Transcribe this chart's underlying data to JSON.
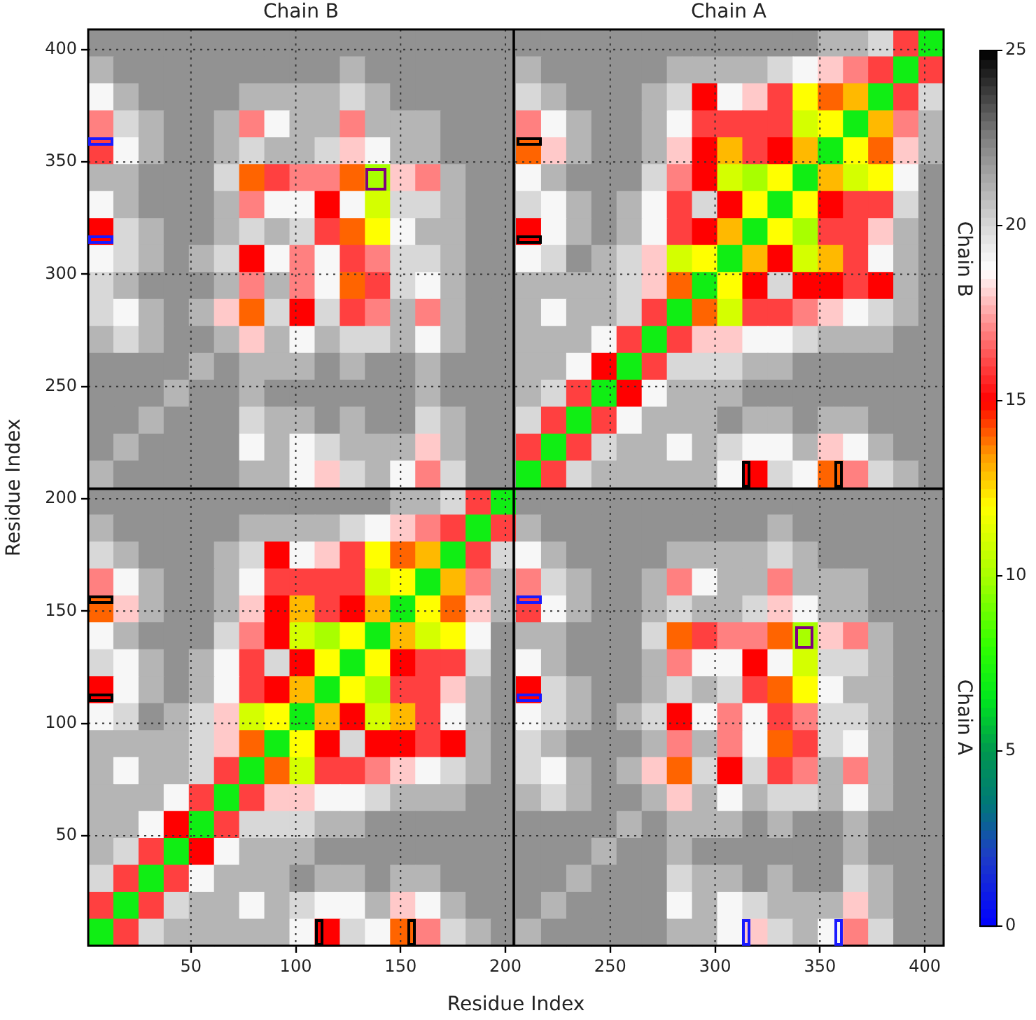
{
  "chart_data": {
    "type": "heatmap",
    "xlabel": "Residue Index",
    "ylabel": "Residue Index",
    "annotations": [
      "Chain B",
      "Chain A",
      "Chain B",
      "Chain A"
    ],
    "xlim": [
      1,
      409
    ],
    "ylim": [
      1,
      409
    ],
    "xticks": [
      50,
      100,
      150,
      200,
      250,
      300,
      350,
      400
    ],
    "yticks": [
      50,
      100,
      150,
      200,
      250,
      300,
      350,
      400
    ],
    "grid": true,
    "ref_lines": [
      {
        "axis": "x",
        "value": 204,
        "color": "#000000"
      },
      {
        "axis": "y",
        "value": 204.5,
        "color": "#000000"
      }
    ],
    "clim": [
      0,
      25
    ],
    "cticks": [
      0,
      5,
      10,
      15,
      20,
      25
    ],
    "cells": [
      [
        22,
        22,
        22,
        22,
        22,
        22,
        22,
        22,
        22,
        22,
        22,
        22,
        22,
        22,
        22,
        22,
        22,
        22,
        22,
        22,
        22,
        22,
        22,
        22,
        22,
        22,
        22,
        22,
        22,
        21,
        21,
        20,
        16,
        7
      ],
      [
        21,
        22,
        22,
        22,
        22,
        22,
        22,
        22,
        22,
        22,
        21,
        22,
        22,
        22,
        22,
        22,
        22,
        21,
        22,
        22,
        22,
        22,
        22,
        21,
        21,
        21,
        21,
        20,
        19,
        18,
        17,
        16,
        7,
        16
      ],
      [
        19,
        21,
        22,
        22,
        22,
        22,
        21,
        21,
        21,
        21,
        20,
        21,
        22,
        22,
        22,
        22,
        22,
        20,
        21,
        22,
        22,
        22,
        21,
        20,
        15,
        19,
        18,
        16,
        12,
        14,
        13,
        7,
        16,
        20
      ],
      [
        17,
        20,
        21,
        22,
        22,
        21,
        17,
        19,
        21,
        21,
        17,
        21,
        21,
        21,
        22,
        22,
        22,
        17,
        19,
        21,
        22,
        22,
        21,
        19,
        16,
        16,
        16,
        16,
        11,
        12,
        7,
        13,
        17,
        21
      ],
      [
        16,
        19,
        21,
        22,
        22,
        21,
        20,
        21,
        21,
        20,
        18,
        19,
        21,
        21,
        22,
        22,
        22,
        14,
        18,
        21,
        22,
        22,
        21,
        18,
        15,
        13,
        16,
        15,
        13,
        7,
        12,
        14,
        18,
        21
      ],
      [
        21,
        21,
        22,
        22,
        22,
        20,
        14,
        16,
        17,
        17,
        14,
        10,
        18,
        17,
        21,
        22,
        22,
        19,
        21,
        22,
        22,
        22,
        20,
        17,
        15,
        11,
        10,
        12,
        7,
        13,
        11,
        12,
        19,
        22
      ],
      [
        19,
        21,
        22,
        22,
        22,
        21,
        17,
        19,
        19,
        15,
        19,
        11,
        20,
        20,
        21,
        22,
        22,
        20,
        19,
        21,
        22,
        21,
        19,
        16,
        20,
        15,
        12,
        7,
        12,
        15,
        16,
        16,
        20,
        22
      ],
      [
        15,
        20,
        21,
        22,
        22,
        21,
        20,
        21,
        20,
        16,
        14,
        12,
        19,
        21,
        21,
        22,
        22,
        15,
        19,
        21,
        22,
        21,
        19,
        16,
        15,
        13,
        7,
        12,
        10,
        16,
        16,
        18,
        21,
        22
      ],
      [
        19,
        20,
        21,
        22,
        21,
        20,
        15,
        19,
        17,
        19,
        16,
        17,
        20,
        20,
        21,
        22,
        22,
        19,
        20,
        22,
        21,
        20,
        18,
        11,
        12,
        7,
        13,
        15,
        11,
        13,
        16,
        19,
        21,
        22
      ],
      [
        20,
        21,
        22,
        22,
        22,
        21,
        17,
        21,
        17,
        19,
        14,
        16,
        20,
        19,
        21,
        22,
        22,
        21,
        21,
        21,
        21,
        20,
        18,
        14,
        7,
        12,
        15,
        20,
        15,
        15,
        16,
        15,
        21,
        22
      ],
      [
        20,
        19,
        21,
        22,
        21,
        18,
        14,
        20,
        15,
        20,
        16,
        17,
        21,
        17,
        21,
        22,
        22,
        21,
        19,
        21,
        21,
        20,
        16,
        7,
        14,
        11,
        16,
        16,
        17,
        18,
        19,
        20,
        21,
        22
      ],
      [
        21,
        20,
        21,
        22,
        22,
        21,
        18,
        21,
        19,
        21,
        20,
        20,
        21,
        19,
        21,
        22,
        22,
        21,
        21,
        21,
        19,
        16,
        7,
        16,
        18,
        18,
        19,
        19,
        20,
        21,
        21,
        21,
        22,
        22
      ],
      [
        22,
        22,
        22,
        22,
        21,
        22,
        21,
        21,
        21,
        22,
        21,
        22,
        22,
        21,
        22,
        22,
        22,
        21,
        21,
        19,
        15,
        7,
        16,
        20,
        20,
        20,
        21,
        21,
        22,
        22,
        22,
        22,
        22,
        22
      ],
      [
        22,
        22,
        22,
        21,
        22,
        22,
        21,
        22,
        22,
        22,
        22,
        22,
        22,
        21,
        22,
        22,
        22,
        21,
        20,
        16,
        7,
        15,
        19,
        21,
        21,
        21,
        22,
        22,
        22,
        22,
        22,
        22,
        22,
        22
      ],
      [
        22,
        22,
        21,
        22,
        22,
        22,
        20,
        21,
        21,
        22,
        21,
        22,
        22,
        20,
        21,
        22,
        22,
        20,
        16,
        7,
        16,
        19,
        21,
        21,
        21,
        22,
        21,
        21,
        22,
        21,
        21,
        22,
        22,
        22
      ],
      [
        22,
        21,
        22,
        22,
        22,
        22,
        19,
        21,
        19,
        20,
        21,
        21,
        21,
        18,
        21,
        22,
        22,
        16,
        7,
        16,
        20,
        21,
        21,
        19,
        21,
        20,
        19,
        19,
        21,
        18,
        19,
        21,
        22,
        22
      ],
      [
        21,
        22,
        22,
        22,
        22,
        22,
        21,
        21,
        19,
        18,
        20,
        21,
        19,
        17,
        20,
        22,
        22,
        7,
        16,
        20,
        21,
        21,
        21,
        21,
        21,
        19,
        15,
        20,
        19,
        14,
        17,
        20,
        21,
        22
      ],
      [
        22,
        22,
        22,
        22,
        22,
        22,
        22,
        22,
        22,
        22,
        22,
        22,
        21,
        21,
        20,
        16,
        7,
        22,
        22,
        22,
        22,
        22,
        22,
        22,
        22,
        22,
        22,
        22,
        22,
        22,
        22,
        22,
        22,
        22
      ],
      [
        21,
        22,
        22,
        22,
        22,
        22,
        21,
        21,
        21,
        21,
        20,
        19,
        18,
        17,
        16,
        7,
        16,
        21,
        22,
        22,
        22,
        22,
        22,
        22,
        22,
        22,
        22,
        21,
        22,
        22,
        22,
        22,
        22,
        22
      ],
      [
        20,
        21,
        22,
        22,
        22,
        21,
        20,
        15,
        19,
        18,
        16,
        12,
        14,
        13,
        7,
        16,
        20,
        19,
        21,
        22,
        22,
        22,
        22,
        21,
        21,
        21,
        21,
        20,
        21,
        22,
        22,
        22,
        22,
        22
      ],
      [
        17,
        19,
        21,
        22,
        22,
        21,
        19,
        16,
        16,
        16,
        16,
        11,
        12,
        7,
        13,
        17,
        21,
        17,
        20,
        21,
        22,
        22,
        21,
        17,
        19,
        21,
        21,
        17,
        21,
        21,
        21,
        22,
        22,
        22
      ],
      [
        14,
        18,
        21,
        22,
        22,
        21,
        18,
        15,
        13,
        16,
        15,
        13,
        7,
        12,
        14,
        18,
        21,
        16,
        19,
        21,
        22,
        22,
        21,
        20,
        21,
        21,
        20,
        18,
        19,
        21,
        21,
        22,
        22,
        22
      ],
      [
        19,
        21,
        22,
        22,
        22,
        20,
        17,
        15,
        11,
        10,
        12,
        7,
        13,
        11,
        12,
        19,
        22,
        21,
        21,
        22,
        22,
        22,
        20,
        14,
        16,
        17,
        17,
        14,
        10,
        18,
        17,
        21,
        22,
        22
      ],
      [
        20,
        19,
        21,
        22,
        21,
        19,
        16,
        20,
        15,
        12,
        7,
        12,
        15,
        16,
        16,
        20,
        22,
        19,
        21,
        22,
        22,
        22,
        21,
        17,
        19,
        19,
        15,
        19,
        11,
        20,
        20,
        21,
        22,
        22
      ],
      [
        15,
        19,
        21,
        22,
        21,
        19,
        16,
        15,
        13,
        7,
        12,
        10,
        16,
        16,
        18,
        21,
        22,
        15,
        20,
        21,
        22,
        22,
        21,
        20,
        21,
        20,
        16,
        14,
        12,
        19,
        21,
        21,
        22,
        22
      ],
      [
        19,
        20,
        22,
        21,
        20,
        18,
        11,
        12,
        7,
        13,
        15,
        11,
        13,
        16,
        19,
        21,
        22,
        19,
        20,
        21,
        22,
        21,
        20,
        15,
        19,
        17,
        19,
        16,
        17,
        20,
        20,
        21,
        22,
        22
      ],
      [
        21,
        21,
        21,
        21,
        20,
        18,
        14,
        7,
        12,
        15,
        20,
        15,
        15,
        16,
        15,
        21,
        22,
        20,
        21,
        22,
        22,
        22,
        21,
        17,
        21,
        17,
        19,
        14,
        16,
        20,
        19,
        21,
        22,
        22
      ],
      [
        21,
        19,
        21,
        21,
        20,
        16,
        7,
        14,
        11,
        16,
        16,
        17,
        18,
        19,
        20,
        21,
        22,
        20,
        19,
        21,
        22,
        21,
        18,
        14,
        20,
        15,
        20,
        16,
        17,
        21,
        17,
        21,
        22,
        22
      ],
      [
        21,
        21,
        21,
        19,
        16,
        7,
        16,
        18,
        18,
        19,
        19,
        20,
        21,
        21,
        21,
        22,
        22,
        21,
        20,
        21,
        22,
        22,
        21,
        18,
        21,
        19,
        21,
        20,
        20,
        21,
        19,
        21,
        22,
        22
      ],
      [
        21,
        21,
        19,
        15,
        7,
        16,
        20,
        20,
        20,
        21,
        21,
        22,
        22,
        22,
        22,
        22,
        22,
        22,
        22,
        22,
        22,
        21,
        22,
        21,
        21,
        21,
        22,
        21,
        22,
        22,
        21,
        22,
        22,
        22
      ],
      [
        21,
        20,
        16,
        7,
        15,
        19,
        21,
        21,
        21,
        22,
        22,
        22,
        22,
        22,
        22,
        22,
        22,
        22,
        22,
        22,
        21,
        22,
        22,
        21,
        22,
        22,
        22,
        22,
        22,
        22,
        21,
        22,
        22,
        22
      ],
      [
        20,
        16,
        7,
        16,
        19,
        21,
        21,
        21,
        22,
        21,
        21,
        22,
        21,
        21,
        22,
        22,
        22,
        22,
        22,
        21,
        22,
        22,
        22,
        20,
        21,
        21,
        22,
        21,
        22,
        22,
        20,
        21,
        22,
        22
      ],
      [
        16,
        7,
        16,
        20,
        21,
        21,
        19,
        21,
        20,
        19,
        19,
        21,
        18,
        19,
        21,
        22,
        22,
        22,
        21,
        22,
        22,
        22,
        22,
        19,
        21,
        19,
        20,
        21,
        21,
        21,
        18,
        21,
        22,
        22
      ],
      [
        7,
        16,
        20,
        21,
        21,
        21,
        21,
        21,
        19,
        15,
        20,
        19,
        14,
        17,
        20,
        21,
        22,
        21,
        22,
        22,
        22,
        22,
        22,
        21,
        21,
        19,
        18,
        20,
        21,
        19,
        17,
        20,
        22,
        22
      ]
    ]
  }
}
